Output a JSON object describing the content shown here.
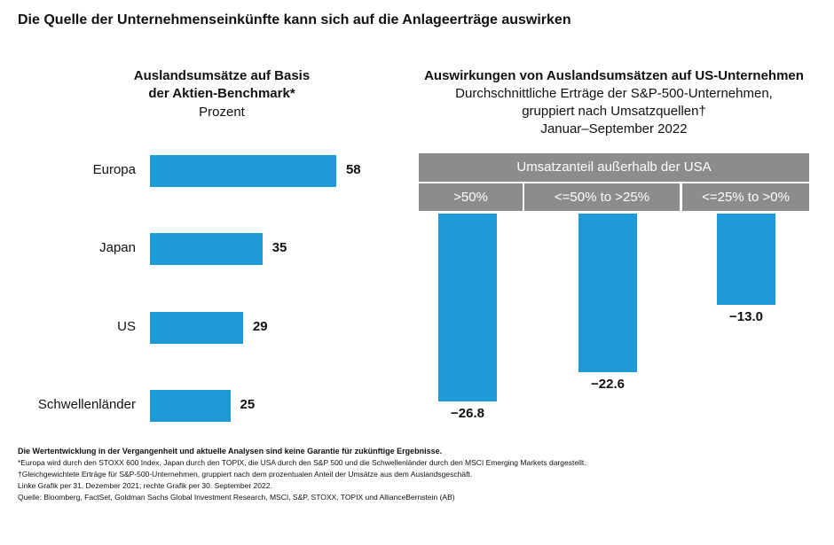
{
  "title": "Die Quelle der Unternehmenseinkünfte kann sich auf die Anlageerträge auswirken",
  "colors": {
    "bar": "#1f9ad9",
    "header": "#8c8c8c"
  },
  "chart_data": [
    {
      "type": "bar",
      "orientation": "horizontal",
      "title": "Auslandsumsätze auf Basis der Aktien-Benchmark*",
      "title_lines": [
        "Auslandsumsätze auf Basis",
        "der Aktien-Benchmark*"
      ],
      "unit": "Prozent",
      "categories": [
        "Europa",
        "Japan",
        "US",
        "Schwellenländer"
      ],
      "values": [
        58,
        35,
        29,
        25
      ],
      "labels": [
        "58",
        "35",
        "29",
        "25"
      ]
    },
    {
      "type": "bar",
      "title": "Auswirkungen von Auslandsumsätzen auf US-Unternehmen",
      "subtitle_lines": [
        "Durchschnittliche Erträge der S&P-500-Unternehmen,",
        "gruppiert nach Umsatzquellen†",
        "Januar–September 2022"
      ],
      "group_header": "Umsatzanteil außerhalb der USA",
      "categories": [
        ">50%",
        "<=50% to >25%",
        "<=25% to >0%"
      ],
      "values": [
        -26.8,
        -22.6,
        -13.0
      ],
      "labels": [
        "−26.8",
        "−22.6",
        "−13.0"
      ]
    }
  ],
  "footnotes": [
    "Die Wertentwicklung in der Vergangenheit und aktuelle Analysen sind keine Garantie für zukünftige Ergebnisse.",
    "*Europa wird durch den STOXX 600 Index, Japan durch den TOPIX, die USA durch den S&P 500 und die Schwellenländer durch den MSCI Emerging Markets dargestellt.",
    "†Gleichgewichtete Erträge für S&P-500-Unternehmen, gruppiert nach dem prozentualen Anteil der Umsätze aus dem Auslandsgeschäft.",
    "Linke Grafik per 31. Dezember 2021; rechte Grafik per 30. September 2022.",
    "Quelle: Bloomberg, FactSet, Goldman Sachs Global Investment Research, MSCI, S&P, STOXX, TOPIX und AllianceBernstein (AB)"
  ]
}
